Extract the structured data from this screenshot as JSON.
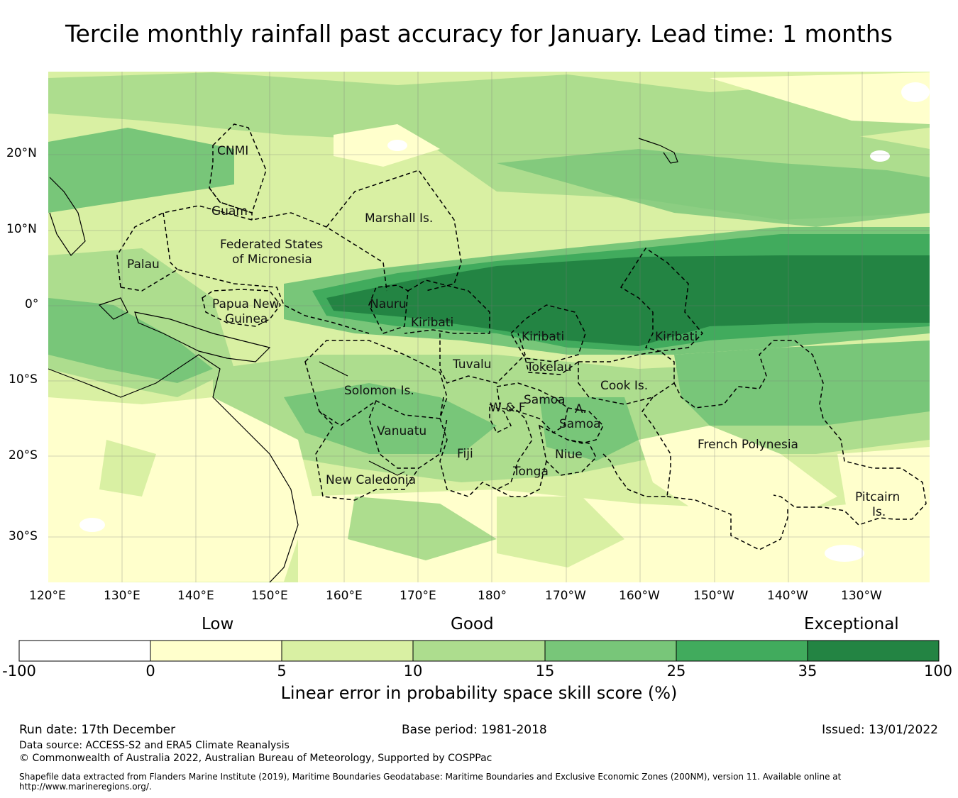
{
  "title": "Tercile monthly rainfall past accuracy for January. Lead time: 1 months",
  "map": {
    "lon_ticks": [
      "120°E",
      "130°E",
      "140°E",
      "150°E",
      "160°E",
      "170°E",
      "180°",
      "170°W",
      "160°W",
      "150°W",
      "140°W",
      "130°W"
    ],
    "lat_ticks": [
      "20°N",
      "10°N",
      "0°",
      "10°S",
      "20°S",
      "30°S"
    ],
    "regions": [
      {
        "name": "CNMI"
      },
      {
        "name": "Guam"
      },
      {
        "name": "Marshall Is."
      },
      {
        "name": "Federated States"
      },
      {
        "name": "of Micronesia"
      },
      {
        "name": "Palau"
      },
      {
        "name": "Papua New"
      },
      {
        "name": "Guinea"
      },
      {
        "name": "Nauru"
      },
      {
        "name": "Kiribati"
      },
      {
        "name": "Kiribati"
      },
      {
        "name": "Kiribati"
      },
      {
        "name": "Tuvalu"
      },
      {
        "name": "Tokelau"
      },
      {
        "name": "Solomon Is."
      },
      {
        "name": "Samoa"
      },
      {
        "name": "W & F"
      },
      {
        "name": "A."
      },
      {
        "name": "Samoa"
      },
      {
        "name": "Cook Is."
      },
      {
        "name": "Vanuatu"
      },
      {
        "name": "Fiji"
      },
      {
        "name": "Niue"
      },
      {
        "name": "Tonga"
      },
      {
        "name": "New Caledonia"
      },
      {
        "name": "French Polynesia"
      },
      {
        "name": "Pitcairn"
      },
      {
        "name": "Is."
      }
    ]
  },
  "colorbar": {
    "categories": [
      "Low",
      "Good",
      "Exceptional"
    ],
    "ticks": [
      "-100",
      "0",
      "5",
      "10",
      "15",
      "25",
      "35",
      "100"
    ],
    "colors": [
      "#ffffff",
      "#ffffcc",
      "#d9f0a3",
      "#addd8e",
      "#78c679",
      "#41ab5d",
      "#238443"
    ],
    "title": "Linear error in probability space skill score (%)"
  },
  "footer": {
    "run_date": "Run date: 17th December",
    "base_period": "Base period: 1981-2018",
    "issued": "Issued: 13/01/2022",
    "source": "Data source: ACCESS-S2 and ERA5 Climate Reanalysis",
    "copyright": "© Commonwealth of Australia 2022, Australian Bureau of Meteorology, Supported by COSPPac",
    "shapefile_1": "Shapefile data extracted from Flanders Marine Institute (2019), Maritime Boundaries Geodatabase: Maritime Boundaries and Exclusive Economic Zones (200NM), version 11. Available online at",
    "shapefile_2": "http://www.marineregions.org/."
  }
}
